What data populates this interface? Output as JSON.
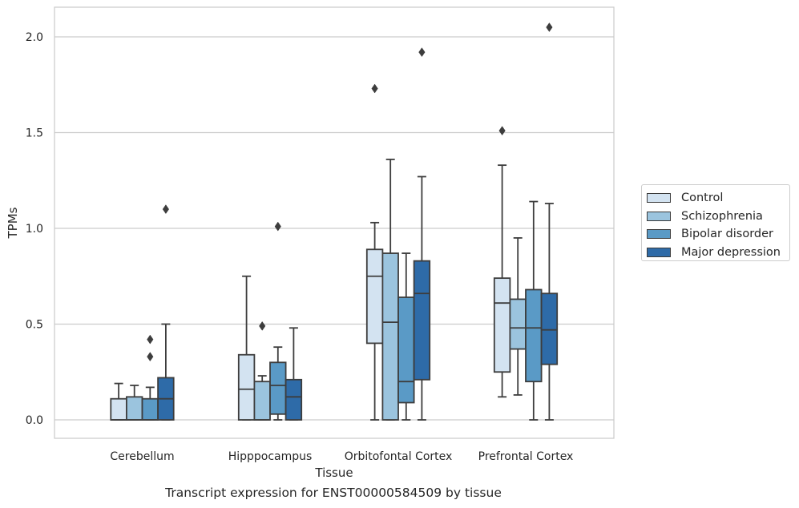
{
  "chart_data": {
    "type": "box",
    "title": "",
    "xlabel": "Tissue",
    "ylabel": "TPMs",
    "caption": "Transcript expression for ENST00000584509 by tissue",
    "ylim": [
      -0.1,
      2.16
    ],
    "yticks": [
      "0.0",
      "0.5",
      "1.0",
      "1.5",
      "2.0"
    ],
    "grid": "horizontal",
    "legend_position": "right",
    "categories": [
      "Cerebellum",
      "Hipppocampus",
      "Orbitofontal Cortex",
      "Prefrontal Cortex"
    ],
    "series": [
      {
        "name": "Control",
        "color": "#d3e3f1",
        "boxes": [
          {
            "q1": 0.0,
            "median": 0.0,
            "q3": 0.11,
            "whisker_low": 0.0,
            "whisker_high": 0.19,
            "outliers": []
          },
          {
            "q1": 0.0,
            "median": 0.16,
            "q3": 0.34,
            "whisker_low": 0.0,
            "whisker_high": 0.75,
            "outliers": []
          },
          {
            "q1": 0.4,
            "median": 0.75,
            "q3": 0.89,
            "whisker_low": 0.0,
            "whisker_high": 1.03,
            "outliers": [
              1.73
            ]
          },
          {
            "q1": 0.25,
            "median": 0.61,
            "q3": 0.74,
            "whisker_low": 0.12,
            "whisker_high": 1.33,
            "outliers": [
              1.51
            ]
          }
        ]
      },
      {
        "name": "Schizophrenia",
        "color": "#9bc4de",
        "boxes": [
          {
            "q1": 0.0,
            "median": 0.0,
            "q3": 0.12,
            "whisker_low": 0.0,
            "whisker_high": 0.18,
            "outliers": []
          },
          {
            "q1": 0.0,
            "median": 0.0,
            "q3": 0.2,
            "whisker_low": 0.0,
            "whisker_high": 0.23,
            "outliers": [
              0.49
            ]
          },
          {
            "q1": 0.0,
            "median": 0.51,
            "q3": 0.87,
            "whisker_low": 0.0,
            "whisker_high": 1.36,
            "outliers": []
          },
          {
            "q1": 0.37,
            "median": 0.48,
            "q3": 0.63,
            "whisker_low": 0.13,
            "whisker_high": 0.95,
            "outliers": []
          }
        ]
      },
      {
        "name": "Bipolar disorder",
        "color": "#5a9ac6",
        "boxes": [
          {
            "q1": 0.0,
            "median": 0.0,
            "q3": 0.11,
            "whisker_low": 0.0,
            "whisker_high": 0.17,
            "outliers": [
              0.33,
              0.42
            ]
          },
          {
            "q1": 0.03,
            "median": 0.18,
            "q3": 0.3,
            "whisker_low": 0.0,
            "whisker_high": 0.38,
            "outliers": [
              1.01
            ]
          },
          {
            "q1": 0.09,
            "median": 0.2,
            "q3": 0.64,
            "whisker_low": 0.0,
            "whisker_high": 0.87,
            "outliers": []
          },
          {
            "q1": 0.2,
            "median": 0.48,
            "q3": 0.68,
            "whisker_low": 0.0,
            "whisker_high": 1.14,
            "outliers": []
          }
        ]
      },
      {
        "name": "Major depression",
        "color": "#2e6ba8",
        "boxes": [
          {
            "q1": 0.0,
            "median": 0.11,
            "q3": 0.22,
            "whisker_low": 0.0,
            "whisker_high": 0.5,
            "outliers": [
              1.1
            ]
          },
          {
            "q1": 0.0,
            "median": 0.12,
            "q3": 0.21,
            "whisker_low": 0.0,
            "whisker_high": 0.48,
            "outliers": []
          },
          {
            "q1": 0.21,
            "median": 0.66,
            "q3": 0.83,
            "whisker_low": 0.0,
            "whisker_high": 1.27,
            "outliers": [
              1.92
            ]
          },
          {
            "q1": 0.29,
            "median": 0.47,
            "q3": 0.66,
            "whisker_low": 0.0,
            "whisker_high": 1.13,
            "outliers": [
              2.05
            ]
          }
        ]
      }
    ]
  }
}
